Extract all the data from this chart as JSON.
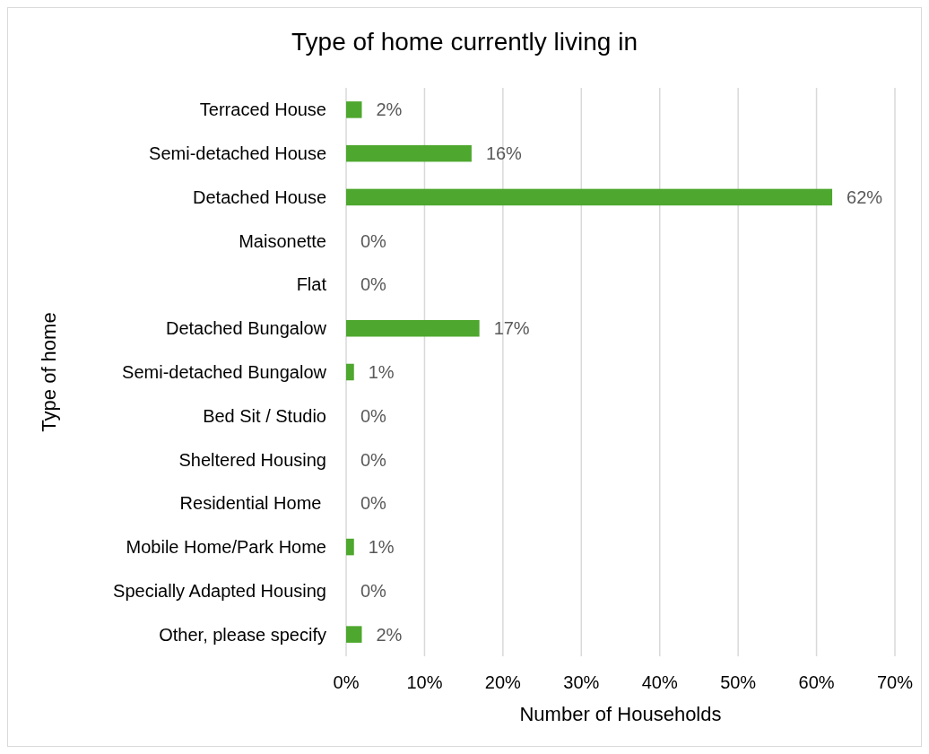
{
  "chart_data": {
    "type": "bar",
    "orientation": "horizontal",
    "title": "Type of home currently living in",
    "xlabel": "Number of Households",
    "ylabel": "Type of home",
    "categories": [
      "Terraced House",
      "Semi-detached House",
      "Detached House",
      "Maisonette",
      "Flat",
      "Detached Bungalow",
      "Semi-detached Bungalow",
      "Bed Sit / Studio",
      "Sheltered Housing",
      "Residential Home ",
      "Mobile Home/Park Home",
      "Specially Adapted Housing",
      "Other, please specify"
    ],
    "values": [
      2,
      16,
      62,
      0,
      0,
      17,
      1,
      0,
      0,
      0,
      1,
      0,
      2
    ],
    "value_labels": [
      "2%",
      "16%",
      "62%",
      "0%",
      "0%",
      "17%",
      "1%",
      "0%",
      "0%",
      "0%",
      "1%",
      "0%",
      "2%"
    ],
    "color": "#4ea72e",
    "xlim": [
      0,
      70
    ],
    "xticks": [
      {
        "value": 0,
        "label": "0%"
      },
      {
        "value": 10,
        "label": "10%"
      },
      {
        "value": 20,
        "label": "20%"
      },
      {
        "value": 30,
        "label": "30%"
      },
      {
        "value": 40,
        "label": "40%"
      },
      {
        "value": 50,
        "label": "50%"
      },
      {
        "value": 60,
        "label": "60%"
      },
      {
        "value": 70,
        "label": "70%"
      }
    ],
    "grid": "x"
  }
}
